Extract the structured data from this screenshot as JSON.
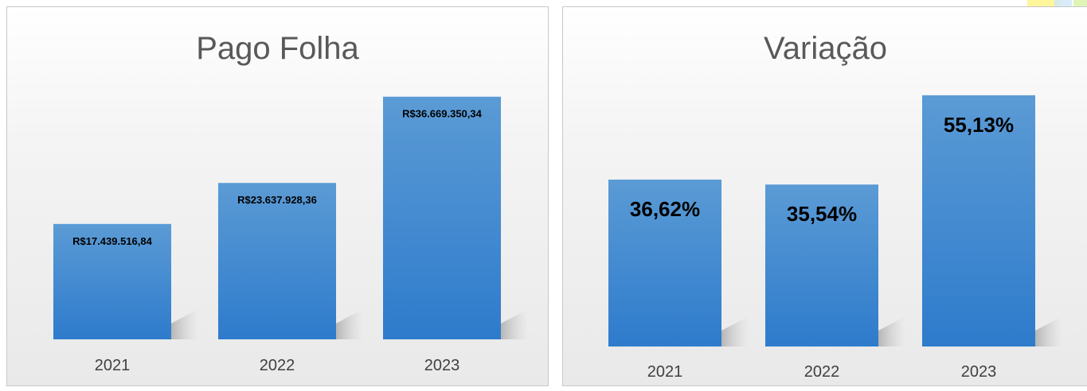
{
  "chart_data": [
    {
      "type": "bar",
      "title": "Pago Folha",
      "categories": [
        "2021",
        "2022",
        "2023"
      ],
      "values": [
        17439516.84,
        23637928.36,
        36669350.34
      ],
      "data_labels": [
        "R$17.439.516,84",
        "R$23.637.928,36",
        "R$36.669.350,34"
      ],
      "ylim": [
        0,
        43000000
      ],
      "grid": false,
      "bar_color": "#3a86cc"
    },
    {
      "type": "bar",
      "title": "Variação",
      "categories": [
        "2021",
        "2022",
        "2023"
      ],
      "values": [
        36.62,
        35.54,
        55.13
      ],
      "data_labels": [
        "36,62%",
        "35,54%",
        "55,13%"
      ],
      "ylim": [
        0,
        64
      ],
      "grid": false,
      "bar_color": "#3a86cc"
    }
  ],
  "colors": {
    "bar_top": "#5b9bd5",
    "bar_bottom": "#2e7bcc",
    "title": "#595959"
  }
}
